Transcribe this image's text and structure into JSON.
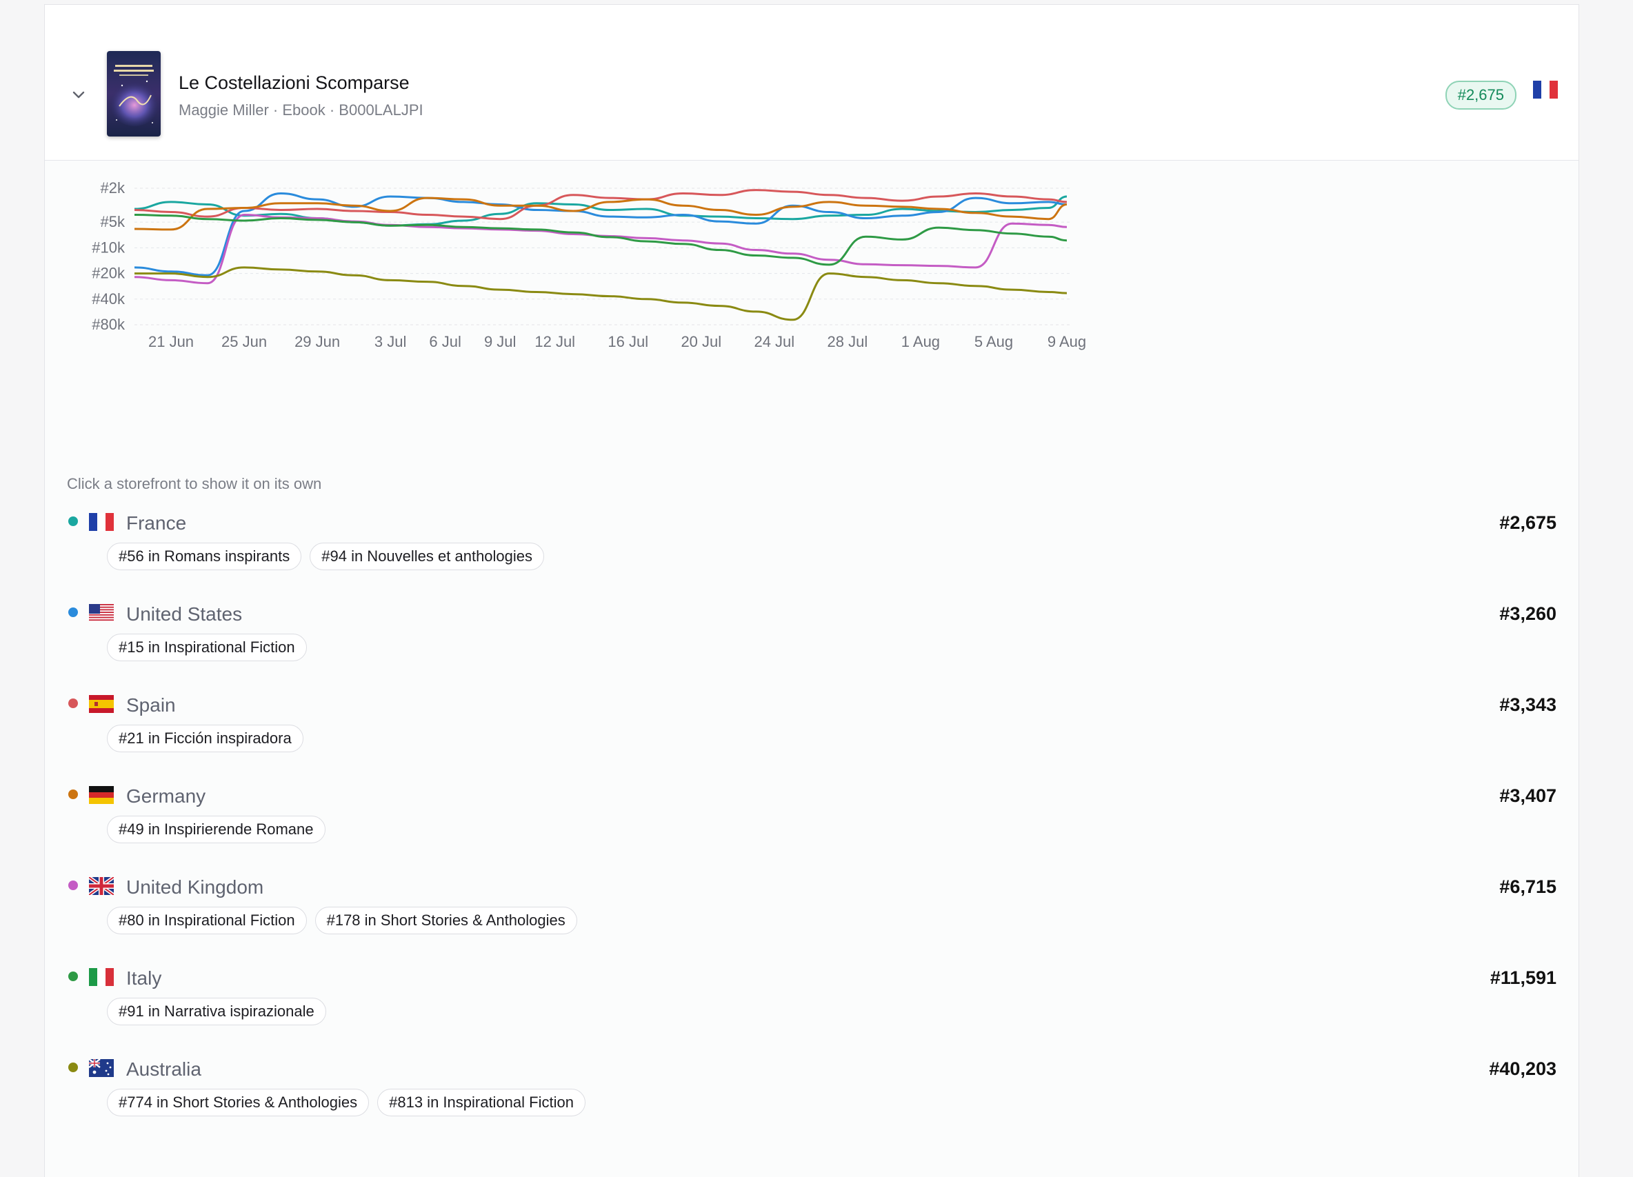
{
  "book": {
    "title": "Le Costellazioni Scomparse",
    "subtitle": "Maggie Miller · Ebook · B000LALJPI",
    "rank_badge": "#2,675",
    "flag": "fr-flag-icon",
    "cover_icon": "book-cover-image"
  },
  "hint": "Click a storefront to show it on its own",
  "colors": {
    "France": "#1aa7a0",
    "United States": "#2a8bdc",
    "Spain": "#d7575a",
    "Germany": "#cc7410",
    "United Kingdom": "#c45cc4",
    "Italy": "#2e9a45",
    "Australia": "#8a8a12"
  },
  "storefronts": [
    {
      "name": "France",
      "rank": "#2,675",
      "flag": "fr-flag-icon",
      "categories": [
        "#56 in Romans inspirants",
        "#94 in Nouvelles et anthologies"
      ]
    },
    {
      "name": "United States",
      "rank": "#3,260",
      "flag": "us-flag-icon",
      "categories": [
        "#15 in Inspirational Fiction"
      ]
    },
    {
      "name": "Spain",
      "rank": "#3,343",
      "flag": "es-flag-icon",
      "categories": [
        "#21 in Ficción inspiradora"
      ]
    },
    {
      "name": "Germany",
      "rank": "#3,407",
      "flag": "de-flag-icon",
      "categories": [
        "#49 in Inspirierende Romane"
      ]
    },
    {
      "name": "United Kingdom",
      "rank": "#6,715",
      "flag": "gb-flag-icon",
      "categories": [
        "#80 in Inspirational Fiction",
        "#178 in Short Stories & Anthologies"
      ]
    },
    {
      "name": "Italy",
      "rank": "#11,591",
      "flag": "it-flag-icon",
      "categories": [
        "#91 in Narrativa ispirazionale"
      ]
    },
    {
      "name": "Australia",
      "rank": "#40,203",
      "flag": "au-flag-icon",
      "categories": [
        "#774 in Short Stories & Anthologies",
        "#813 in Inspirational Fiction"
      ]
    }
  ],
  "chart_data": {
    "type": "line",
    "y_scale": "log",
    "y_inverted": true,
    "y_ticks": [
      "#2k",
      "#5k",
      "#10k",
      "#20k",
      "#40k",
      "#80k"
    ],
    "y_tick_values": [
      2000,
      5000,
      10000,
      20000,
      40000,
      80000
    ],
    "x_ticks": [
      "21 Jun",
      "25 Jun",
      "29 Jun",
      "3 Jul",
      "6 Jul",
      "9 Jul",
      "12 Jul",
      "16 Jul",
      "20 Jul",
      "24 Jul",
      "28 Jul",
      "1 Aug",
      "5 Aug",
      "9 Aug"
    ],
    "x": [
      "19 Jun",
      "21 Jun",
      "23 Jun",
      "25 Jun",
      "27 Jun",
      "29 Jun",
      "1 Jul",
      "3 Jul",
      "5 Jul",
      "7 Jul",
      "9 Jul",
      "11 Jul",
      "13 Jul",
      "15 Jul",
      "17 Jul",
      "19 Jul",
      "21 Jul",
      "23 Jul",
      "25 Jul",
      "27 Jul",
      "29 Jul",
      "31 Jul",
      "2 Aug",
      "4 Aug",
      "6 Aug",
      "8 Aug",
      "9 Aug"
    ],
    "series": [
      {
        "name": "France",
        "values": [
          3500,
          2900,
          3100,
          4200,
          4000,
          4500,
          5000,
          5500,
          5300,
          4800,
          4000,
          3000,
          3100,
          3600,
          3500,
          4200,
          4300,
          4500,
          4600,
          4200,
          4100,
          3500,
          3700,
          3800,
          3600,
          3400,
          2500
        ]
      },
      {
        "name": "United States",
        "values": [
          17000,
          19000,
          21000,
          3700,
          2300,
          2700,
          3300,
          2500,
          2600,
          2900,
          3100,
          3600,
          3700,
          4300,
          4400,
          4100,
          4900,
          5200,
          3200,
          3800,
          4500,
          4200,
          3800,
          2600,
          3000,
          2900,
          3100
        ]
      },
      {
        "name": "Spain",
        "values": [
          3600,
          3800,
          4300,
          3400,
          3600,
          3500,
          3700,
          3800,
          4100,
          4300,
          4600,
          3200,
          2400,
          2600,
          2700,
          2300,
          2400,
          2100,
          2200,
          2400,
          2600,
          2800,
          2500,
          2300,
          2500,
          2700,
          2900
        ]
      },
      {
        "name": "Germany",
        "values": [
          6000,
          6100,
          3500,
          3400,
          3000,
          3000,
          3200,
          3700,
          2600,
          2700,
          3200,
          3200,
          3700,
          2900,
          2700,
          3200,
          3600,
          4100,
          3300,
          2900,
          3200,
          3300,
          3500,
          3900,
          4300,
          4600,
          3100
        ]
      },
      {
        "name": "United Kingdom",
        "values": [
          22000,
          24000,
          26000,
          4100,
          4400,
          4500,
          4900,
          5400,
          5700,
          5900,
          6100,
          6300,
          6900,
          7300,
          7700,
          8200,
          8900,
          10600,
          11700,
          13800,
          15600,
          16000,
          16300,
          17000,
          5200,
          5400,
          5700
        ]
      },
      {
        "name": "Italy",
        "values": [
          4100,
          4200,
          4600,
          4800,
          4500,
          4700,
          5000,
          5500,
          5400,
          5700,
          5900,
          6100,
          6600,
          7500,
          8400,
          9000,
          10600,
          12300,
          13100,
          15800,
          7400,
          8000,
          5800,
          6200,
          6800,
          7400,
          8200
        ]
      },
      {
        "name": "Australia",
        "values": [
          20000,
          20000,
          22000,
          17000,
          18000,
          19000,
          21000,
          24000,
          25000,
          28000,
          31000,
          33000,
          35000,
          37000,
          40000,
          44000,
          48000,
          56000,
          70000,
          20000,
          22000,
          24000,
          26000,
          28000,
          31000,
          33000,
          34000
        ]
      }
    ]
  }
}
